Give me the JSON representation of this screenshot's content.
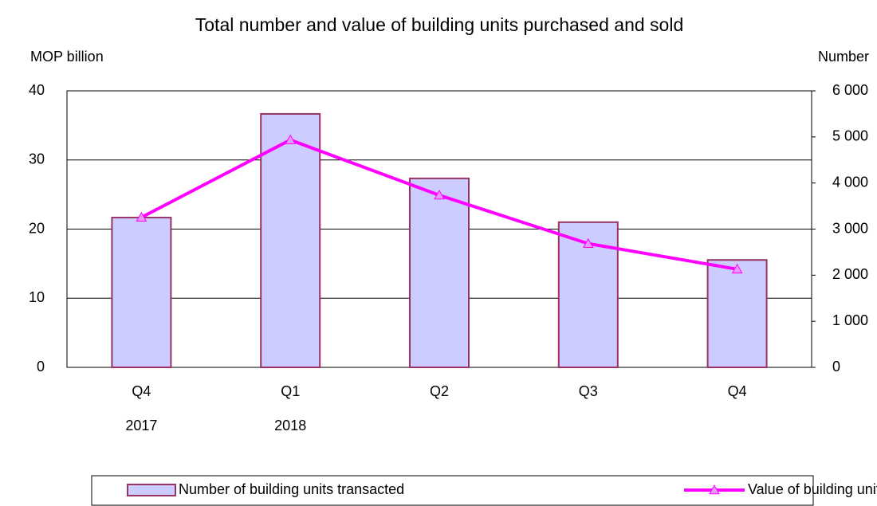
{
  "chart_data": {
    "type": "bar-line",
    "title": "Total number and value of building units purchased and sold",
    "y_label": "MOP billion",
    "y2_label": "Number",
    "categories": [
      "Q4",
      "Q1",
      "Q2",
      "Q3",
      "Q4"
    ],
    "year_labels": [
      "2017",
      "2018",
      null,
      null,
      null
    ],
    "ylim": [
      0,
      40
    ],
    "yticks": [
      0,
      10,
      20,
      30,
      40
    ],
    "y2lim": [
      0,
      6000
    ],
    "y2ticks": [
      0,
      {
        "value": 1000,
        "label": "1 000"
      },
      {
        "value": 2000,
        "label": "2 000"
      },
      {
        "value": 3000,
        "label": "3 000"
      },
      {
        "value": 4000,
        "label": "4 000"
      },
      {
        "value": 5000,
        "label": "5 000"
      },
      {
        "value": 6000,
        "label": "6 000"
      }
    ],
    "grid": true,
    "legend": "bottom",
    "series": [
      {
        "name": "Number of building units transacted",
        "type": "bar",
        "axis": "y2",
        "color": "#ccccff",
        "edge_color": "#993366",
        "values": [
          3250,
          5500,
          4100,
          3150,
          2330
        ]
      },
      {
        "name": "Value of building units transacted",
        "type": "line",
        "axis": "y",
        "color": "#ff00ff",
        "marker_color": "#e699ff",
        "values": [
          21.7,
          32.9,
          24.9,
          17.9,
          14.2
        ]
      }
    ]
  }
}
